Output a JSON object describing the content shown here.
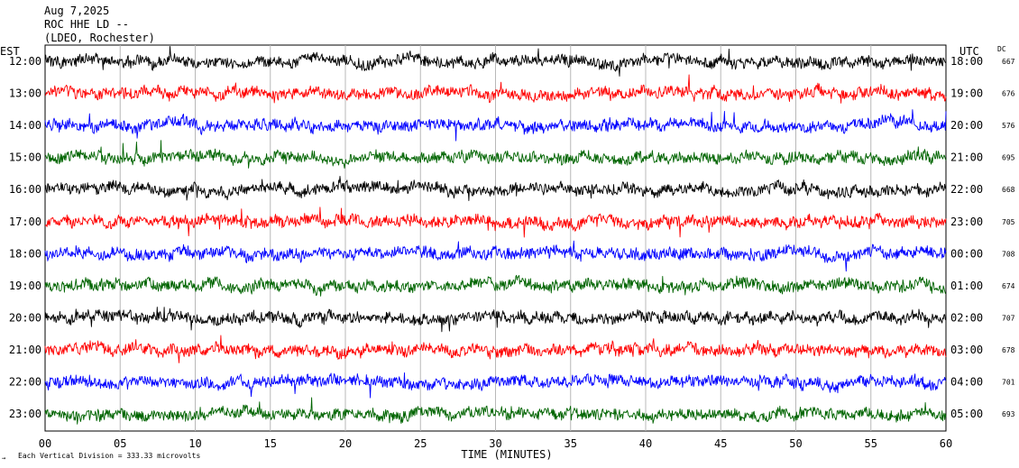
{
  "header": {
    "date": "Aug 7,2025",
    "station": "ROC HHE LD --",
    "network": "(LDEO, Rochester)"
  },
  "left_axis_title": "EST",
  "right_axis_title": "UTC",
  "dc_title": "DC",
  "footer_scale": "Each Vertical Division = 333.33 microvolts",
  "footer_mark": "→",
  "colors": {
    "black": "#000000",
    "red": "#ff0000",
    "blue": "#0000ff",
    "green": "#006400",
    "grid": "#b8b8b8"
  },
  "chart_data": {
    "type": "line",
    "title": "",
    "xlabel": "TIME (MINUTES)",
    "ylabel": "",
    "xlim": [
      0,
      60
    ],
    "x_ticks": [
      "00",
      "05",
      "10",
      "15",
      "20",
      "25",
      "30",
      "35",
      "40",
      "45",
      "50",
      "55",
      "60"
    ],
    "series": [
      {
        "est": "12:00",
        "utc": "18:00",
        "dc": "667",
        "color": "#000000"
      },
      {
        "est": "13:00",
        "utc": "19:00",
        "dc": "676",
        "color": "#ff0000"
      },
      {
        "est": "14:00",
        "utc": "20:00",
        "dc": "576",
        "color": "#0000ff"
      },
      {
        "est": "15:00",
        "utc": "21:00",
        "dc": "695",
        "color": "#006400"
      },
      {
        "est": "16:00",
        "utc": "22:00",
        "dc": "668",
        "color": "#000000"
      },
      {
        "est": "17:00",
        "utc": "23:00",
        "dc": "705",
        "color": "#ff0000"
      },
      {
        "est": "18:00",
        "utc": "00:00",
        "dc": "708",
        "color": "#0000ff"
      },
      {
        "est": "19:00",
        "utc": "01:00",
        "dc": "674",
        "color": "#006400"
      },
      {
        "est": "20:00",
        "utc": "02:00",
        "dc": "707",
        "color": "#000000"
      },
      {
        "est": "21:00",
        "utc": "03:00",
        "dc": "678",
        "color": "#ff0000"
      },
      {
        "est": "22:00",
        "utc": "04:00",
        "dc": "701",
        "color": "#0000ff"
      },
      {
        "est": "23:00",
        "utc": "05:00",
        "dc": "693",
        "color": "#006400"
      }
    ]
  }
}
